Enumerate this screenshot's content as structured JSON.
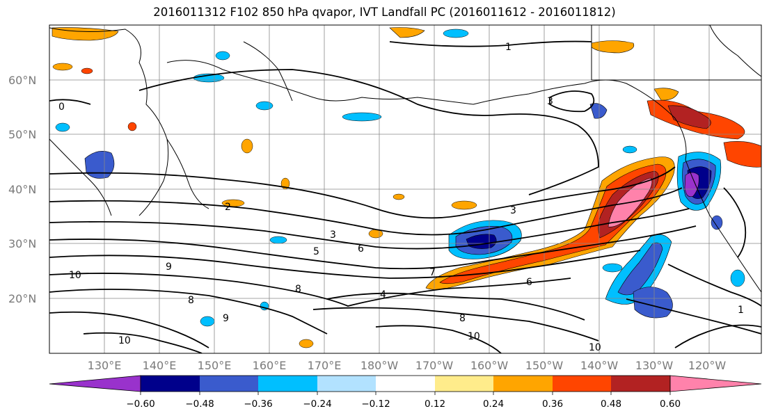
{
  "title": "2016011312 F102 850 hPa qvapor, IVT Landfall PC (2016011612 - 2016011812)",
  "latitude_labels": [
    "60°N",
    "50°N",
    "40°N",
    "30°N",
    "20°N"
  ],
  "longitude_labels": [
    "130°E",
    "140°E",
    "150°E",
    "160°E",
    "170°E",
    "180°W",
    "170°W",
    "160°W",
    "150°W",
    "140°W",
    "130°W",
    "120°W"
  ],
  "colorbar": {
    "ticks": [
      "−0.60",
      "−0.48",
      "−0.36",
      "−0.24",
      "−0.12",
      "0.12",
      "0.24",
      "0.36",
      "0.48",
      "0.60"
    ],
    "colors": [
      "#9932cc",
      "#00008b",
      "#3a5bcd",
      "#00bfff",
      "#b2e2ff",
      "#ffffff",
      "#ffec8b",
      "#ffa500",
      "#ff4500",
      "#b22222",
      "#ff82ab"
    ]
  },
  "contour_labels": [
    "1",
    "2",
    "3",
    "3",
    "3",
    "5",
    "6",
    "7",
    "4",
    "8",
    "8",
    "9",
    "9",
    "10",
    "10",
    "10",
    "10",
    "8",
    "1",
    "6",
    "0"
  ],
  "shading_colors": {
    "blue_strong": "#3a5bcd",
    "blue_dark": "#00008b",
    "blue_light": "#00bfff",
    "orange": "#ffa500",
    "red": "#ff4500",
    "darkred": "#b22222",
    "pink": "#ff82ab",
    "yellow": "#ffec8b",
    "purple": "#9932cc"
  }
}
